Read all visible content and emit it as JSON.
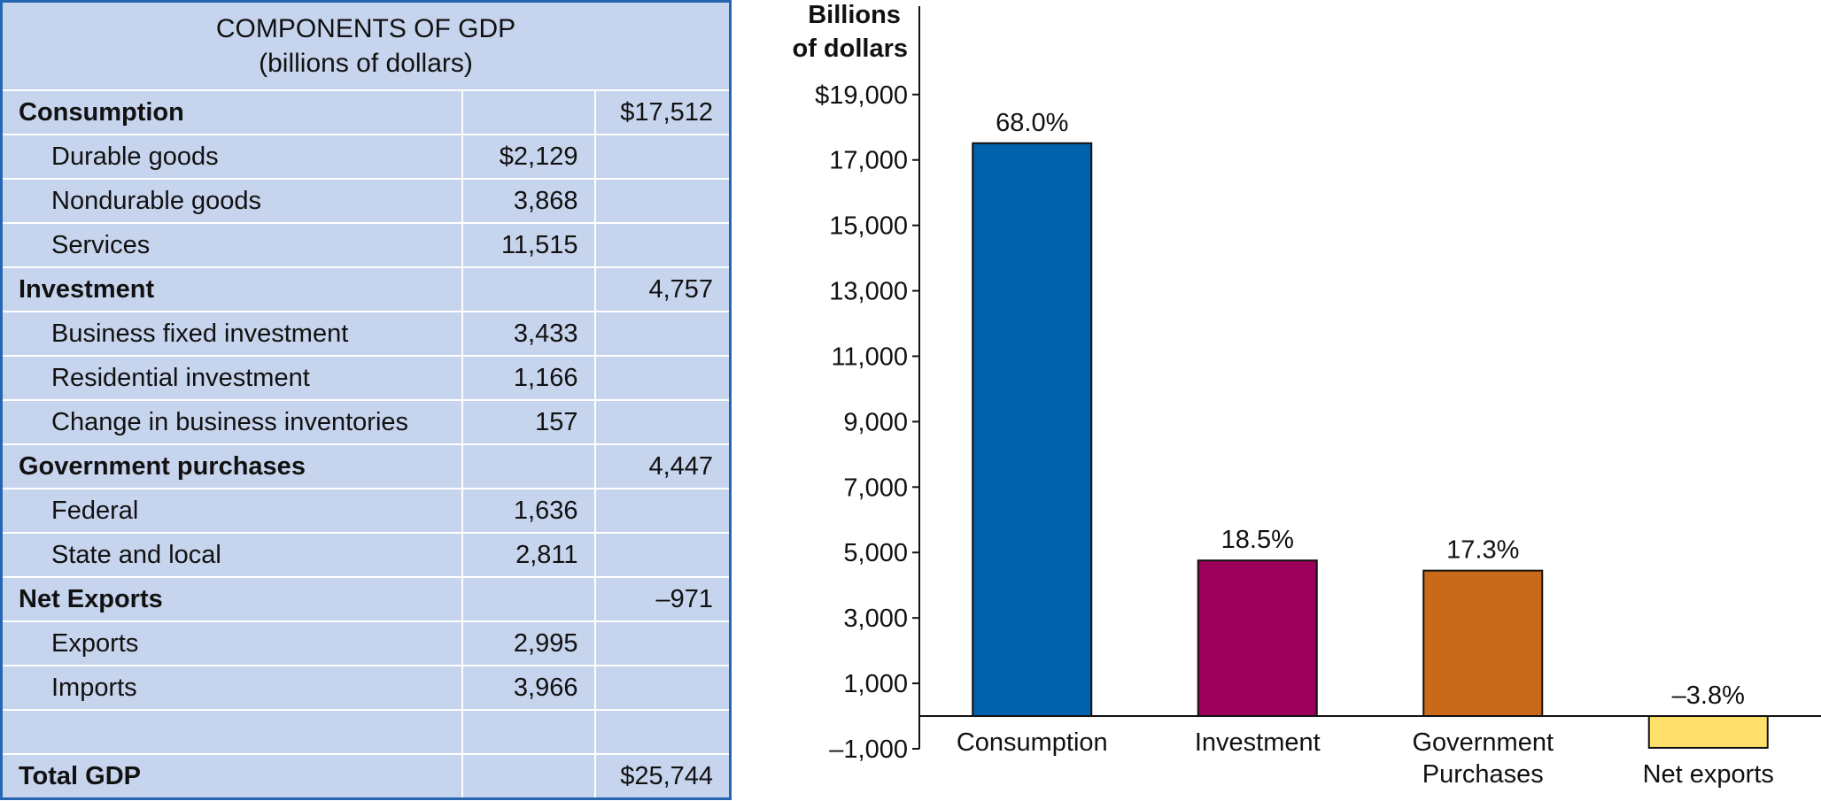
{
  "table": {
    "title": "COMPONENTS OF GDP",
    "subtitle": "(billions of dollars)",
    "sections": [
      {
        "label": "Consumption",
        "total": "$17,512",
        "items": [
          {
            "label": "Durable goods",
            "amount": "$2,129"
          },
          {
            "label": "Nondurable goods",
            "amount": "3,868"
          },
          {
            "label": "Services",
            "amount": "11,515"
          }
        ]
      },
      {
        "label": "Investment",
        "total": "4,757",
        "items": [
          {
            "label": "Business fixed investment",
            "amount": "3,433"
          },
          {
            "label": "Residential investment",
            "amount": "1,166"
          },
          {
            "label": "Change in business inventories",
            "amount": "157"
          }
        ]
      },
      {
        "label": "Government purchases",
        "total": "4,447",
        "items": [
          {
            "label": "Federal",
            "amount": "1,636"
          },
          {
            "label": "State and local",
            "amount": "2,811"
          }
        ]
      },
      {
        "label": "Net Exports",
        "total": "–971",
        "items": [
          {
            "label": "Exports",
            "amount": "2,995"
          },
          {
            "label": "Imports",
            "amount": "3,966"
          }
        ]
      }
    ],
    "grand_total": {
      "label": "Total GDP",
      "total": "$25,744"
    }
  },
  "chart_data": {
    "type": "bar",
    "y_label": "Billions of dollars",
    "categories": [
      "Consumption",
      "Investment",
      "Government Purchases",
      "Net exports"
    ],
    "values": [
      17512,
      4757,
      4447,
      -971
    ],
    "shares": [
      "68.0%",
      "18.5%",
      "17.3%",
      "–3.8%"
    ],
    "colors": [
      "#0061ad",
      "#9d005c",
      "#c96a1b",
      "#ffe06a"
    ],
    "edge_color": "#111111",
    "ylim": [
      -1000,
      21700
    ],
    "yticks": [
      {
        "value": -1000,
        "label": "–1,000"
      },
      {
        "value": 1000,
        "label": "1,000"
      },
      {
        "value": 3000,
        "label": "3,000"
      },
      {
        "value": 5000,
        "label": "5,000"
      },
      {
        "value": 7000,
        "label": "7,000"
      },
      {
        "value": 9000,
        "label": "9,000"
      },
      {
        "value": 11000,
        "label": "11,000"
      },
      {
        "value": 13000,
        "label": "13,000"
      },
      {
        "value": 15000,
        "label": "15,000"
      },
      {
        "value": 17000,
        "label": "17,000"
      },
      {
        "value": 19000,
        "label": "$19,000"
      }
    ],
    "grid": false
  }
}
